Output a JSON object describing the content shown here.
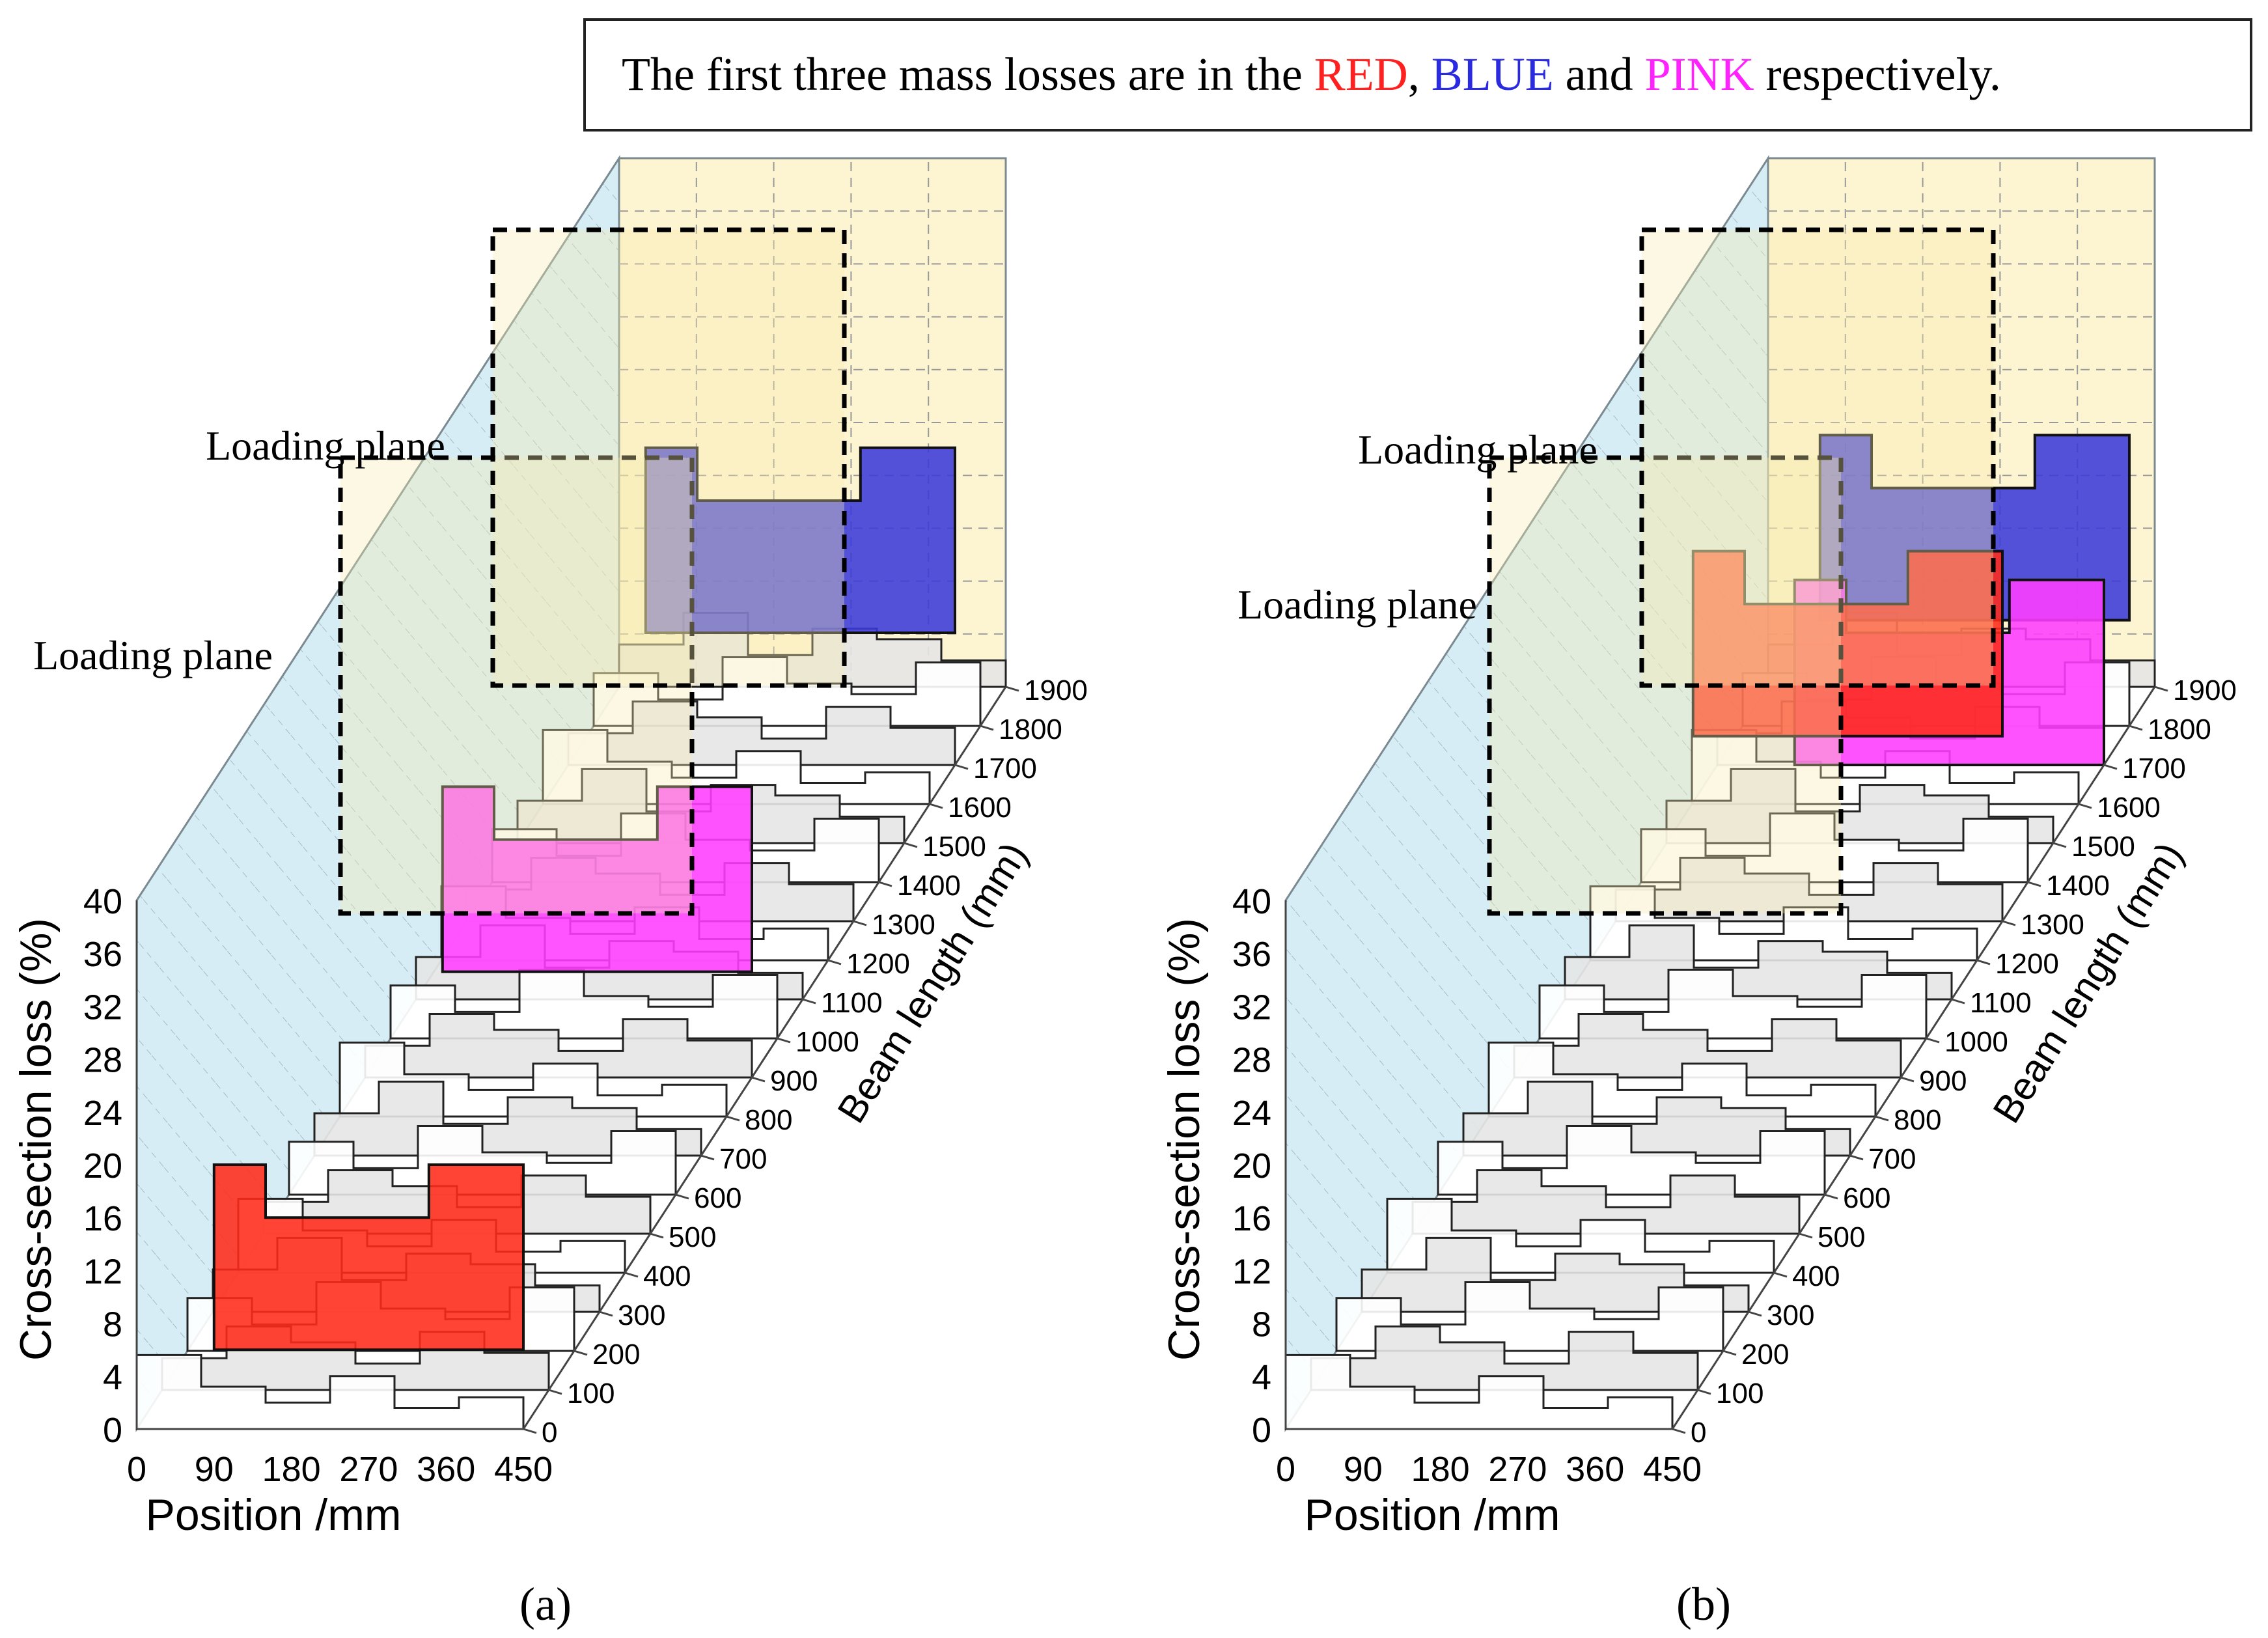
{
  "caption": {
    "prefix": "The first three mass losses are in the ",
    "red_word": "RED",
    "comma": ", ",
    "blue_word": "BLUE",
    "and_word": " and ",
    "pink_word": "PINK",
    "suffix": " respectively.",
    "colors": {
      "red": "#ff2020",
      "blue": "#2a2ae0",
      "pink": "#ff22ff"
    }
  },
  "colors": {
    "back_wall": "#cfeaf5",
    "side_wall": "#fdf3cc",
    "loading_fill": "#f5eab0",
    "mass_red": "#ff2a1a",
    "mass_blue": "#3a3ad8",
    "mass_pink": "#ff3cff",
    "strip_fill": "#ffffff",
    "strip_shade": "#e6e6e6"
  },
  "chart_data": [
    {
      "panel": "a",
      "panel_label": "(a)",
      "type": "3d-step-profiles",
      "title": "",
      "xlabel": "Position /mm",
      "ylabel": "Cross-section loss (%)",
      "zlabel": "Beam length (mm)",
      "x_ticks": [
        "0",
        "90",
        "180",
        "270",
        "360",
        "450"
      ],
      "y_ticks": [
        "0",
        "4",
        "8",
        "12",
        "16",
        "20",
        "24",
        "28",
        "32",
        "36",
        "40"
      ],
      "z_ticks": [
        "0",
        "100",
        "200",
        "300",
        "400",
        "500",
        "600",
        "700",
        "800",
        "900",
        "1000",
        "1100",
        "1200",
        "1300",
        "1400",
        "1500",
        "1600",
        "1700",
        "1800",
        "1900"
      ],
      "xlim": [
        0,
        450
      ],
      "ylim": [
        0,
        40
      ],
      "zlim": [
        0,
        1900
      ],
      "loading_planes": [
        {
          "label": "Loading plane",
          "beam_length_range": [
            700,
            1200
          ]
        },
        {
          "label": "Loading plane",
          "beam_length_range": [
            1300,
            1800
          ]
        }
      ],
      "highlighted_losses": [
        {
          "rank": 1,
          "color": "RED",
          "beam_length": 0,
          "position_range": [
            90,
            450
          ],
          "loss": 20
        },
        {
          "rank": 2,
          "color": "BLUE",
          "beam_length": 1700,
          "position_range": [
            90,
            450
          ],
          "loss": 24
        },
        {
          "rank": 3,
          "color": "PINK",
          "beam_length": 900,
          "position_range": [
            90,
            450
          ],
          "loss": 22
        }
      ]
    },
    {
      "panel": "b",
      "panel_label": "(b)",
      "type": "3d-step-profiles",
      "title": "",
      "xlabel": "Position /mm",
      "ylabel": "Cross-section loss (%)",
      "zlabel": "Beam length (mm)",
      "x_ticks": [
        "0",
        "90",
        "180",
        "270",
        "360",
        "450"
      ],
      "y_ticks": [
        "0",
        "4",
        "8",
        "12",
        "16",
        "20",
        "24",
        "28",
        "32",
        "36",
        "40"
      ],
      "z_ticks": [
        "0",
        "100",
        "200",
        "300",
        "400",
        "500",
        "600",
        "700",
        "800",
        "900",
        "1000",
        "1100",
        "1200",
        "1300",
        "1400",
        "1500",
        "1600",
        "1700",
        "1800",
        "1900"
      ],
      "xlim": [
        0,
        450
      ],
      "ylim": [
        0,
        40
      ],
      "zlim": [
        0,
        1900
      ],
      "loading_planes": [
        {
          "label": "Loading plane",
          "beam_length_range": [
            700,
            1200
          ]
        },
        {
          "label": "Loading plane",
          "beam_length_range": [
            1300,
            1800
          ]
        }
      ],
      "highlighted_losses": [
        {
          "rank": 1,
          "color": "RED",
          "beam_length": 1300,
          "position_range": [
            90,
            450
          ],
          "loss": 28
        },
        {
          "rank": 2,
          "color": "BLUE",
          "beam_length": 1800,
          "position_range": [
            90,
            450
          ],
          "loss": 22
        },
        {
          "rank": 3,
          "color": "PINK",
          "beam_length": 1700,
          "position_range": [
            90,
            450
          ],
          "loss": 14
        }
      ]
    }
  ]
}
